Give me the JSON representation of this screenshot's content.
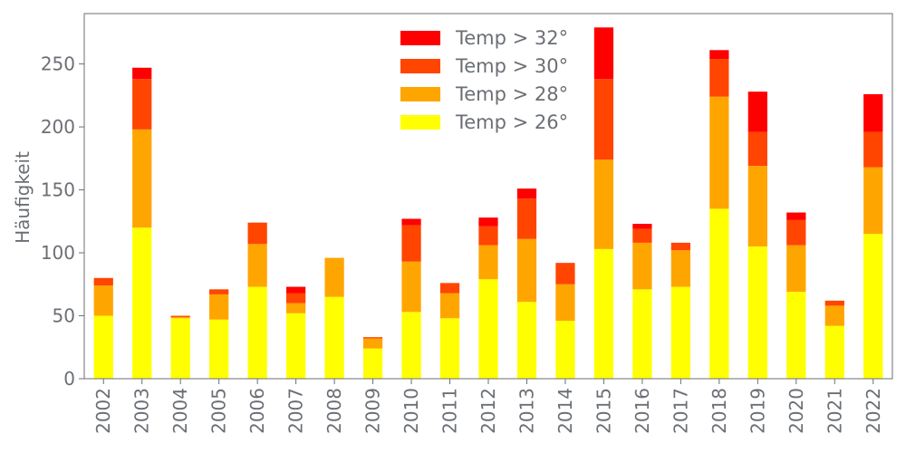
{
  "chart_data": {
    "type": "bar",
    "stacked": true,
    "ylabel": "Häufigkeit",
    "xlabel": "",
    "ylim": [
      0,
      290
    ],
    "yticks": [
      0,
      50,
      100,
      150,
      200,
      250
    ],
    "ytick_labels": [
      "0",
      "50",
      "100",
      "150",
      "200",
      "250"
    ],
    "categories": [
      "2002",
      "2003",
      "2004",
      "2005",
      "2006",
      "2007",
      "2008",
      "2009",
      "2010",
      "2011",
      "2012",
      "2013",
      "2014",
      "2015",
      "2016",
      "2017",
      "2018",
      "2019",
      "2020",
      "2021",
      "2022"
    ],
    "series": [
      {
        "name": "Temp > 26°",
        "color": "#ffff00",
        "values": [
          50,
          120,
          48,
          47,
          73,
          52,
          65,
          24,
          53,
          48,
          79,
          61,
          46,
          103,
          71,
          73,
          135,
          105,
          69,
          42,
          115
        ]
      },
      {
        "name": "Temp > 28°",
        "color": "#ffa500",
        "values": [
          24,
          78,
          1,
          20,
          34,
          8,
          31,
          8,
          40,
          20,
          27,
          50,
          29,
          71,
          37,
          29,
          89,
          64,
          37,
          16,
          53
        ]
      },
      {
        "name": "Temp > 30°",
        "color": "#ff4500",
        "values": [
          6,
          40,
          1,
          4,
          17,
          8,
          0,
          1,
          29,
          8,
          15,
          32,
          17,
          64,
          11,
          6,
          30,
          27,
          20,
          4,
          28
        ]
      },
      {
        "name": "Temp > 32°",
        "color": "#ff0000",
        "values": [
          0,
          9,
          0,
          0,
          0,
          5,
          0,
          0,
          5,
          0,
          7,
          8,
          0,
          41,
          4,
          0,
          7,
          32,
          6,
          0,
          30
        ]
      }
    ],
    "legend_position": "top-center",
    "grid": false
  }
}
